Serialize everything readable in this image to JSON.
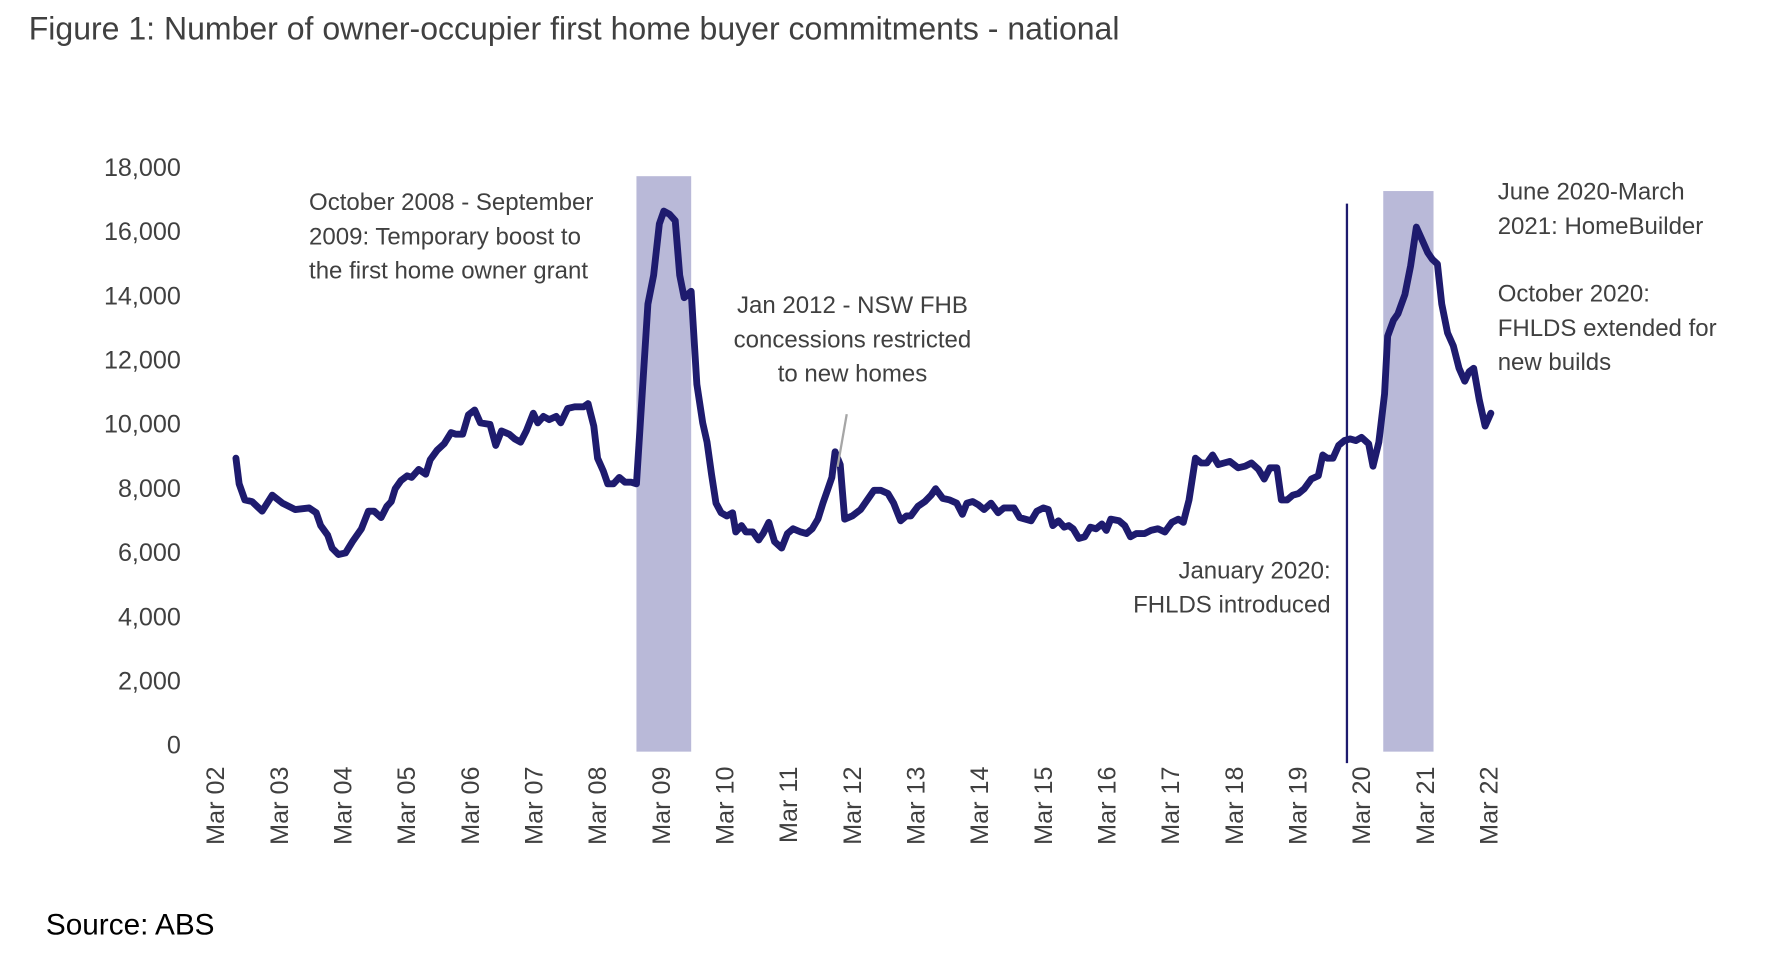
{
  "chart_data": {
    "type": "line",
    "title": "Figure 1: Number of owner-occupier first home buyer commitments - national",
    "source": "Source: ABS",
    "color": "#1e1b6e",
    "shade_color": "#b9b9d8",
    "x": [
      2002.49,
      2002.54,
      2002.63,
      2002.74,
      2002.9,
      2003.06,
      2003.22,
      2003.42,
      2003.64,
      2003.75,
      2003.82,
      2003.93,
      2004.0,
      2004.1,
      2004.21,
      2004.32,
      2004.46,
      2004.57,
      2004.66,
      2004.77,
      2004.86,
      2004.93,
      2004.99,
      2005.08,
      2005.18,
      2005.25,
      2005.36,
      2005.47,
      2005.54,
      2005.65,
      2005.76,
      2005.87,
      2005.94,
      2006.05,
      2006.14,
      2006.24,
      2006.33,
      2006.48,
      2006.57,
      2006.66,
      2006.78,
      2006.87,
      2006.96,
      2007.05,
      2007.16,
      2007.23,
      2007.32,
      2007.41,
      2007.52,
      2007.59,
      2007.7,
      2007.81,
      2007.95,
      2008.02,
      2008.11,
      2008.17,
      2008.26,
      2008.33,
      2008.42,
      2008.51,
      2008.6,
      2008.7,
      2008.78,
      2008.87,
      2008.96,
      2009.05,
      2009.14,
      2009.21,
      2009.3,
      2009.39,
      2009.46,
      2009.53,
      2009.64,
      2009.73,
      2009.82,
      2009.89,
      2009.96,
      2010.03,
      2010.11,
      2010.2,
      2010.29,
      2010.34,
      2010.43,
      2010.5,
      2010.61,
      2010.7,
      2010.77,
      2010.86,
      2010.95,
      2011.06,
      2011.15,
      2011.24,
      2011.36,
      2011.45,
      2011.54,
      2011.63,
      2011.71,
      2011.78,
      2011.85,
      2011.9,
      2011.98,
      2012.05,
      2012.17,
      2012.3,
      2012.44,
      2012.51,
      2012.62,
      2012.73,
      2012.82,
      2012.93,
      2013.02,
      2013.09,
      2013.2,
      2013.31,
      2013.41,
      2013.48,
      2013.59,
      2013.7,
      2013.81,
      2013.9,
      2013.97,
      2014.06,
      2014.15,
      2014.24,
      2014.35,
      2014.46,
      2014.55,
      2014.6,
      2014.71,
      2014.8,
      2014.89,
      2014.98,
      2015.07,
      2015.17,
      2015.25,
      2015.32,
      2015.41,
      2015.5,
      2015.57,
      2015.64,
      2015.73,
      2015.82,
      2015.91,
      2016.0,
      2016.09,
      2016.16,
      2016.23,
      2016.36,
      2016.45,
      2016.54,
      2016.63,
      2016.76,
      2016.86,
      2016.97,
      2017.08,
      2017.19,
      2017.29,
      2017.37,
      2017.46,
      2017.56,
      2017.65,
      2017.74,
      2017.83,
      2017.92,
      2018.01,
      2018.1,
      2018.23,
      2018.34,
      2018.44,
      2018.55,
      2018.64,
      2018.73,
      2018.84,
      2018.91,
      2019.0,
      2019.09,
      2019.18,
      2019.27,
      2019.38,
      2019.49,
      2019.56,
      2019.63,
      2019.72,
      2019.81,
      2019.9,
      2019.99,
      2020.08,
      2020.17,
      2020.28,
      2020.35,
      2020.44,
      2020.53,
      2020.58,
      2020.67,
      2020.74,
      2020.85,
      2020.94,
      2021.03,
      2021.12,
      2021.21,
      2021.28,
      2021.36,
      2021.43,
      2021.52,
      2021.61,
      2021.7,
      2021.79,
      2021.86,
      2021.93,
      2022.02,
      2022.11,
      2022.2
    ],
    "values": [
      9000,
      8200,
      7700,
      7650,
      7350,
      7850,
      7600,
      7400,
      7450,
      7300,
      6900,
      6600,
      6200,
      6000,
      6050,
      6400,
      6800,
      7350,
      7350,
      7150,
      7500,
      7650,
      8050,
      8300,
      8450,
      8400,
      8650,
      8500,
      8950,
      9250,
      9450,
      9800,
      9750,
      9750,
      10350,
      10500,
      10100,
      10050,
      9400,
      9850,
      9750,
      9600,
      9500,
      9850,
      10400,
      10100,
      10300,
      10200,
      10300,
      10100,
      10550,
      10600,
      10600,
      10700,
      10000,
      9000,
      8600,
      8200,
      8200,
      8400,
      8250,
      8250,
      8200,
      11000,
      13800,
      14700,
      16300,
      16700,
      16600,
      16400,
      14700,
      14000,
      14200,
      11300,
      10100,
      9500,
      8500,
      7600,
      7300,
      7200,
      7300,
      6700,
      6900,
      6700,
      6700,
      6450,
      6650,
      7000,
      6400,
      6200,
      6650,
      6800,
      6700,
      6650,
      6800,
      7100,
      7600,
      8000,
      8400,
      9200,
      8800,
      7100,
      7200,
      7400,
      7800,
      8000,
      8000,
      7900,
      7600,
      7050,
      7200,
      7200,
      7500,
      7650,
      7850,
      8050,
      7750,
      7700,
      7600,
      7250,
      7600,
      7650,
      7550,
      7400,
      7600,
      7300,
      7450,
      7450,
      7450,
      7150,
      7100,
      7050,
      7350,
      7450,
      7400,
      6900,
      7050,
      6850,
      6900,
      6800,
      6500,
      6550,
      6850,
      6800,
      6950,
      6750,
      7100,
      7050,
      6900,
      6550,
      6650,
      6650,
      6750,
      6800,
      6700,
      7000,
      7100,
      7000,
      7700,
      9000,
      8850,
      8850,
      9100,
      8800,
      8850,
      8900,
      8700,
      8750,
      8850,
      8650,
      8350,
      8700,
      8700,
      7700,
      7700,
      7850,
      7900,
      8050,
      8350,
      8450,
      9100,
      9000,
      9000,
      9400,
      9550,
      9600,
      9550,
      9650,
      9450,
      8750,
      9500,
      11000,
      12800,
      13300,
      13500,
      14100,
      15000,
      16200,
      15800,
      15400,
      15200,
      15050,
      13800,
      12900,
      12500,
      11800,
      11400,
      11700,
      11800,
      10800,
      10000,
      10400
    ],
    "xlim": [
      2002.2,
      2022.2
    ],
    "xticks": [
      {
        "value": 2002.2,
        "label": "Mar 02"
      },
      {
        "value": 2003.2,
        "label": "Mar 03"
      },
      {
        "value": 2004.2,
        "label": "Mar 04"
      },
      {
        "value": 2005.2,
        "label": "Mar 05"
      },
      {
        "value": 2006.2,
        "label": "Mar 06"
      },
      {
        "value": 2007.2,
        "label": "Mar 07"
      },
      {
        "value": 2008.2,
        "label": "Mar 08"
      },
      {
        "value": 2009.2,
        "label": "Mar 09"
      },
      {
        "value": 2010.2,
        "label": "Mar 10"
      },
      {
        "value": 2011.2,
        "label": "Mar 11"
      },
      {
        "value": 2012.2,
        "label": "Mar 12"
      },
      {
        "value": 2013.2,
        "label": "Mar 13"
      },
      {
        "value": 2014.2,
        "label": "Mar 14"
      },
      {
        "value": 2015.2,
        "label": "Mar 15"
      },
      {
        "value": 2016.2,
        "label": "Mar 16"
      },
      {
        "value": 2017.2,
        "label": "Mar 17"
      },
      {
        "value": 2018.2,
        "label": "Mar 18"
      },
      {
        "value": 2019.2,
        "label": "Mar 19"
      },
      {
        "value": 2020.2,
        "label": "Mar 20"
      },
      {
        "value": 2021.2,
        "label": "Mar 21"
      },
      {
        "value": 2022.2,
        "label": "Mar 22"
      }
    ],
    "ylim": [
      0,
      18000
    ],
    "yticks": [
      0,
      {
        "value": 2000,
        "label": "2,000"
      },
      {
        "value": 4000,
        "label": "4,000"
      },
      {
        "value": 6000,
        "label": "6,000"
      },
      {
        "value": 8000,
        "label": "8,000"
      },
      {
        "value": 10000,
        "label": "10,000"
      },
      {
        "value": 12000,
        "label": "12,000"
      },
      {
        "value": 14000,
        "label": "14,000"
      },
      {
        "value": 16000,
        "label": "16,000"
      },
      {
        "value": 18000,
        "label": "18,000"
      }
    ],
    "shaded_ranges": [
      [
        2008.78,
        2009.64
      ],
      [
        2020.51,
        2021.3
      ]
    ],
    "vlines": [
      2019.94
    ],
    "annotations": [
      {
        "lines": [
          "October 2008 - September",
          "2009: Temporary boost to",
          "the first home owner grant"
        ]
      },
      {
        "lines": [
          "Jan 2012 - NSW FHB",
          "concessions restricted",
          "to new homes"
        ]
      },
      {
        "lines": [
          "January 2020:",
          "FHLDS introduced"
        ]
      },
      {
        "lines": [
          "June 2020-March",
          "2021: HomeBuilder"
        ]
      },
      {
        "lines": [
          "October 2020:",
          "FHLDS extended for",
          "new builds"
        ]
      }
    ]
  }
}
